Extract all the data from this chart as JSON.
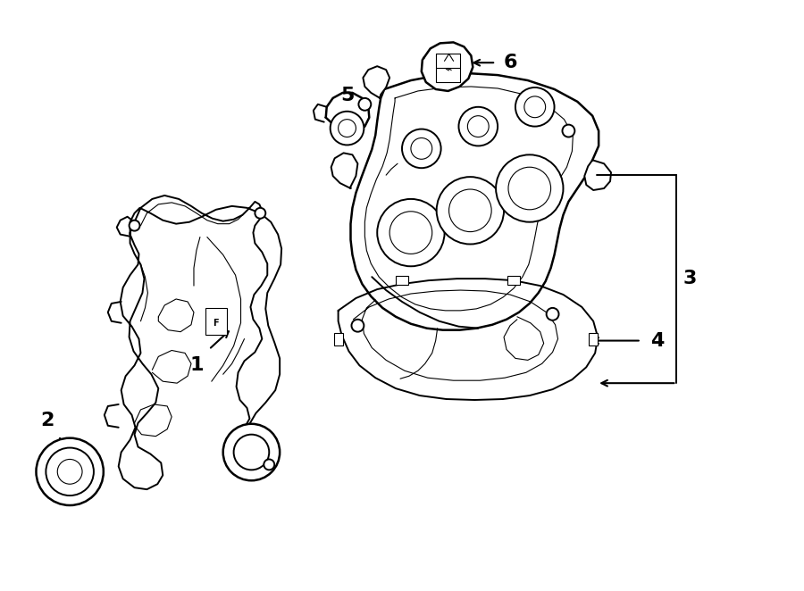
{
  "bg_color": "#ffffff",
  "line_color": "#000000",
  "lw_main": 1.4,
  "lw_thin": 0.8,
  "lw_thick": 1.8,
  "fig_width": 9.0,
  "fig_height": 6.62,
  "dpi": 100
}
